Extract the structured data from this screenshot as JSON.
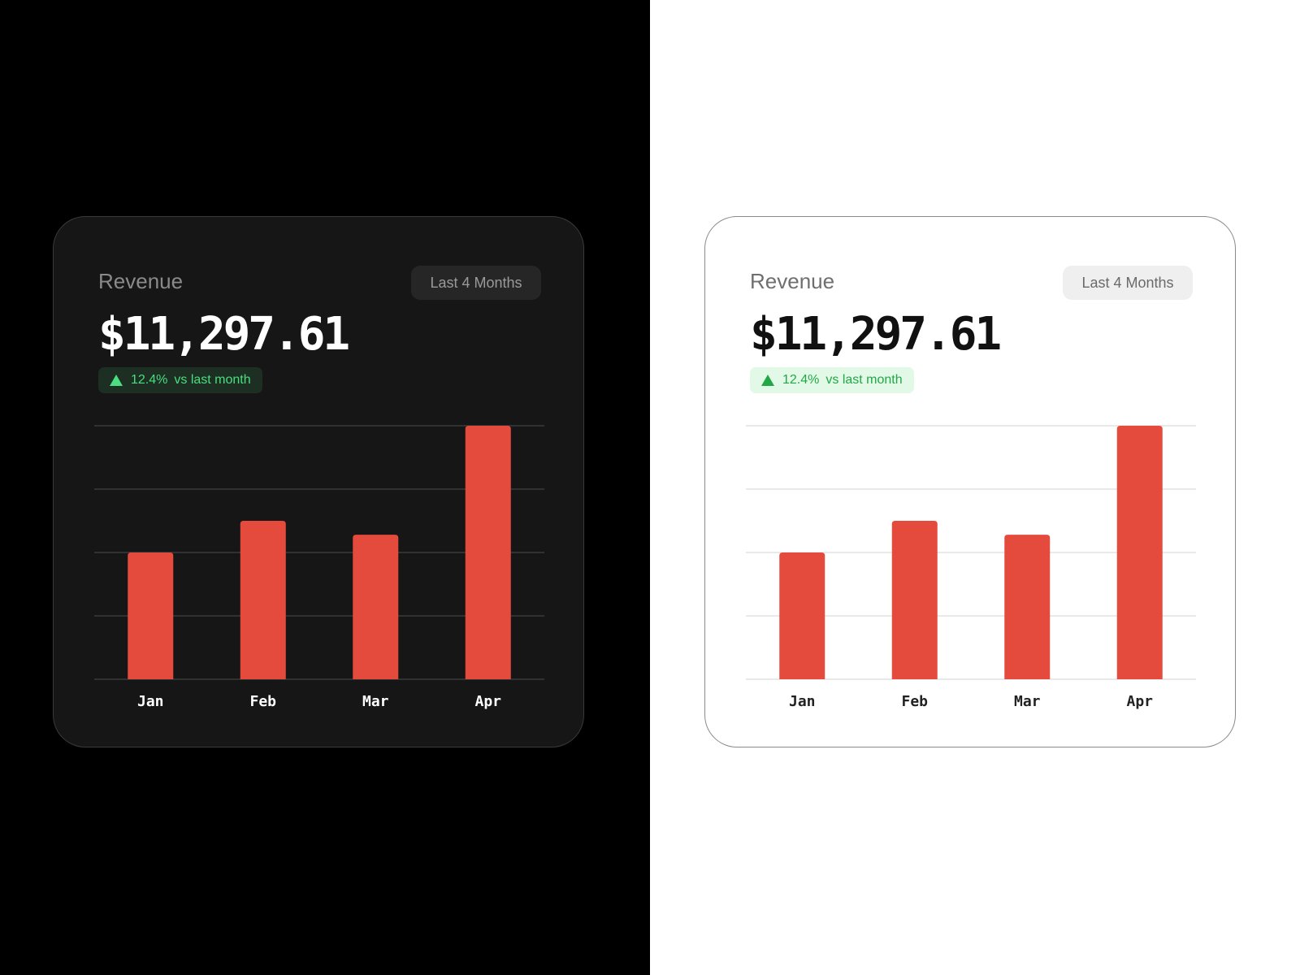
{
  "cards": [
    {
      "theme": "dark",
      "title": "Revenue",
      "range_label": "Last 4 Months",
      "amount": "$11,297.61",
      "delta": {
        "percent": "12.4%",
        "label": "vs last month"
      },
      "colors": {
        "bar": "#e44b3c",
        "grid": "#3a3a3a",
        "label": "#ffffff"
      }
    },
    {
      "theme": "light",
      "title": "Revenue",
      "range_label": "Last 4 Months",
      "amount": "$11,297.61",
      "delta": {
        "percent": "12.4%",
        "label": "vs last month"
      },
      "colors": {
        "bar": "#e44b3c",
        "grid": "#e2e2e2",
        "label": "#222222"
      }
    }
  ],
  "chart_data": {
    "type": "bar",
    "categories": [
      "Jan",
      "Feb",
      "Mar",
      "Apr"
    ],
    "values": [
      0.5,
      0.625,
      0.57,
      1.0
    ],
    "ylim": [
      0,
      1
    ],
    "grid": true,
    "gridlines": 5
  }
}
